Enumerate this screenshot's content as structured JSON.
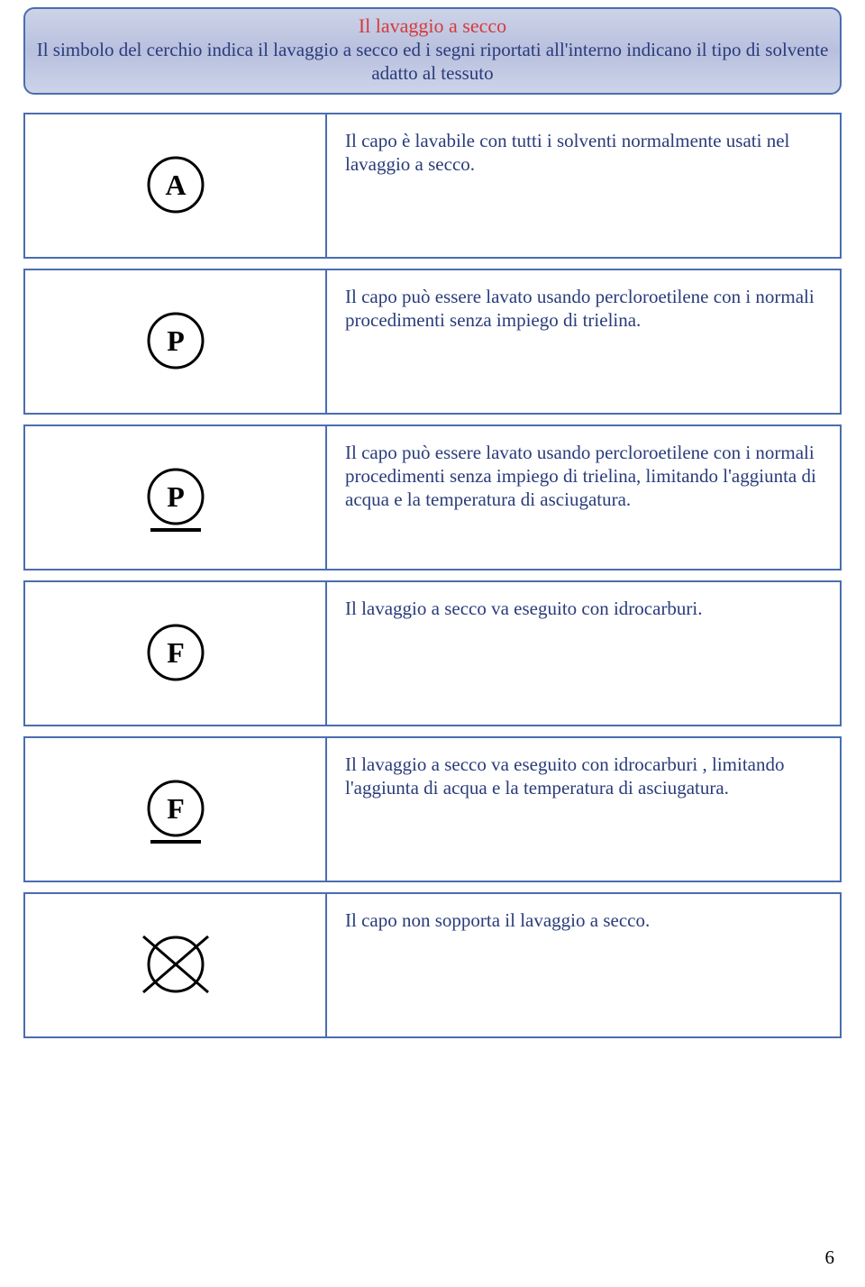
{
  "header": {
    "title": "Il lavaggio a secco",
    "subtitle": "Il simbolo del cerchio indica il lavaggio a secco ed i segni riportati all'interno indicano il tipo di solvente adatto al tessuto"
  },
  "rows": [
    {
      "symbol": {
        "letter": "A",
        "underline": false,
        "crossed": false
      },
      "description": "Il capo è lavabile con tutti i solventi normalmente usati nel lavaggio a secco."
    },
    {
      "symbol": {
        "letter": "P",
        "underline": false,
        "crossed": false
      },
      "description": "Il capo può essere lavato usando percloroetilene con i normali procedimenti senza impiego di trielina."
    },
    {
      "symbol": {
        "letter": "P",
        "underline": true,
        "crossed": false
      },
      "description": "Il capo può essere lavato usando percloroetilene con i normali procedimenti senza impiego di trielina, limitando l'aggiunta di acqua e la temperatura di asciugatura."
    },
    {
      "symbol": {
        "letter": "F",
        "underline": false,
        "crossed": false
      },
      "description": "Il lavaggio a secco va eseguito con idrocarburi."
    },
    {
      "symbol": {
        "letter": "F",
        "underline": true,
        "crossed": false
      },
      "description": "Il lavaggio a secco va eseguito con idrocarburi , limitando l'aggiunta di acqua e la temperatura di asciugatura."
    },
    {
      "symbol": {
        "letter": "",
        "underline": false,
        "crossed": true
      },
      "description": "Il capo non sopporta il lavaggio a secco."
    }
  ],
  "page_number": "6",
  "style": {
    "border_color": "#4a6db0",
    "title_color": "#d63a3a",
    "text_color": "#2a3c7a",
    "header_bg_top": "#cdd3e8",
    "header_bg_mid": "#b8c0de"
  }
}
